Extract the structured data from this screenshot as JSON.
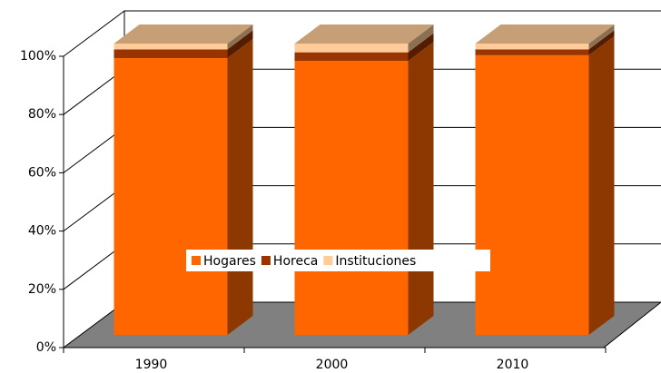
{
  "chart_data": {
    "type": "bar3d_stacked_percent",
    "categories": [
      "1990",
      "2000",
      "2010"
    ],
    "series": [
      {
        "name": "Hogares",
        "color": "#ff6600",
        "values": [
          95,
          94,
          96
        ]
      },
      {
        "name": "Horeca",
        "color": "#993300",
        "values": [
          3,
          3,
          2
        ]
      },
      {
        "name": "Instituciones",
        "color": "#ffcc99",
        "values": [
          2,
          3,
          2
        ]
      }
    ],
    "ylim": [
      0,
      100
    ],
    "yticks": [
      {
        "value": 0,
        "label": "0%"
      },
      {
        "value": 20,
        "label": "20%"
      },
      {
        "value": 40,
        "label": "40%"
      },
      {
        "value": 60,
        "label": "60%"
      },
      {
        "value": 80,
        "label": "80%"
      },
      {
        "value": 100,
        "label": "100%"
      }
    ],
    "grid": true
  }
}
